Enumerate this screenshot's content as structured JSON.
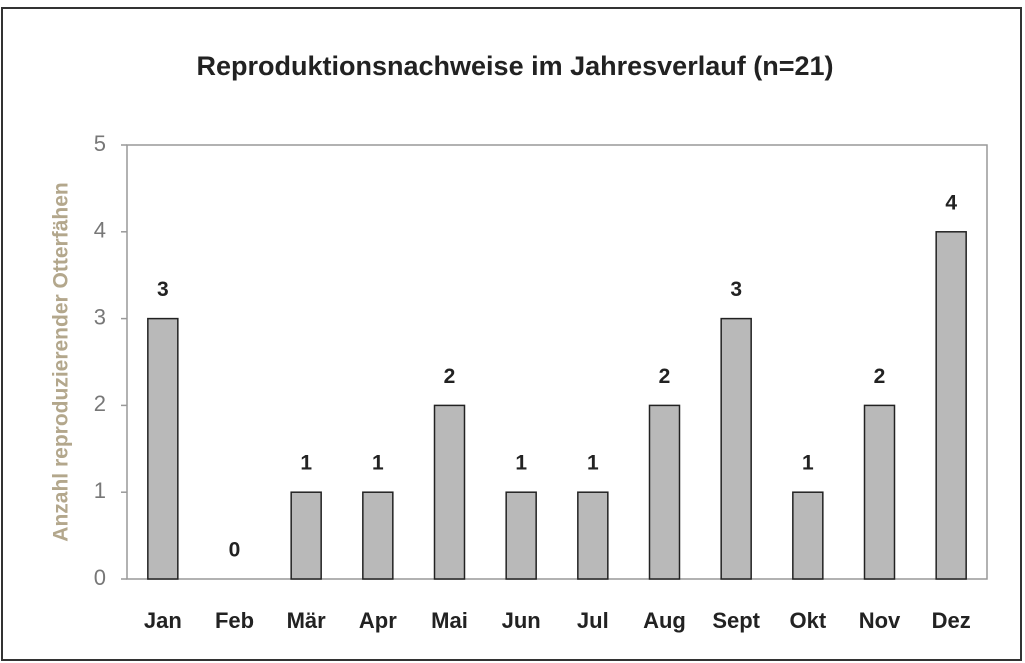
{
  "chart_data": {
    "type": "bar",
    "title": "Reproduktionsnachweise im Jahresverlauf (n=21)",
    "y_label": "Anzahl reproduzierender Otterfähen",
    "categories": [
      "Jan",
      "Feb",
      "Mär",
      "Apr",
      "Mai",
      "Jun",
      "Jul",
      "Aug",
      "Sept",
      "Okt",
      "Nov",
      "Dez"
    ],
    "values": [
      3,
      0,
      1,
      1,
      2,
      1,
      1,
      2,
      3,
      1,
      2,
      4
    ],
    "color": "#b9b9b9",
    "ylim": [
      0,
      5
    ],
    "yticks": [
      0,
      1,
      2,
      3,
      4,
      5
    ],
    "grid": false
  }
}
